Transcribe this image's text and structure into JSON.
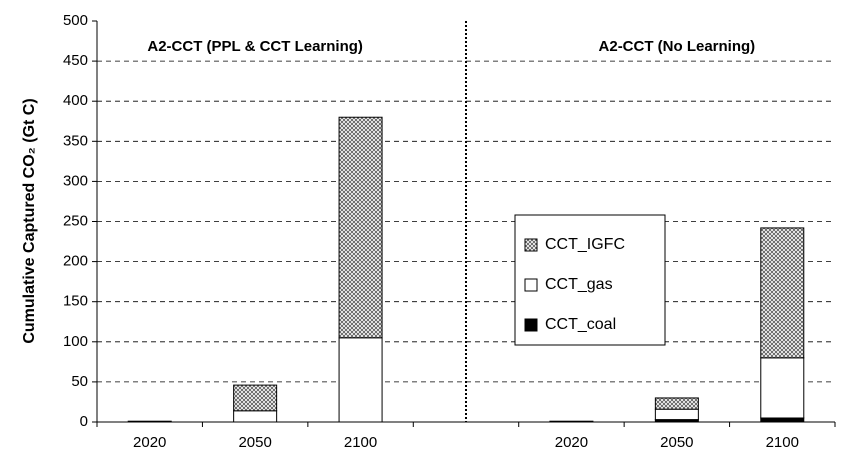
{
  "chart_data": {
    "type": "stacked_bar",
    "y_label": "Cumulative Captured CO₂ (Gt C)",
    "annotations": [
      "A2-CCT (PPL & CCT Learning)",
      "A2-CCT (No Learning)"
    ],
    "categories": [
      "2020",
      "2050",
      "2100",
      null,
      "2020",
      "2050",
      "2100"
    ],
    "series": [
      {
        "name": "CCT_coal",
        "color": "#000000",
        "pattern": "none",
        "values": [
          0,
          0,
          0,
          null,
          0,
          3,
          5
        ]
      },
      {
        "name": "CCT_gas",
        "color": "#ffffff",
        "pattern": "none",
        "values": [
          1,
          14,
          105,
          null,
          1,
          13,
          75
        ]
      },
      {
        "name": "CCT_IGFC",
        "color": "#ffffff",
        "pattern": "crosshatch",
        "values": [
          0,
          32,
          275,
          null,
          0,
          14,
          162
        ]
      }
    ],
    "ylim": [
      0,
      500
    ],
    "yticks": [
      0,
      50,
      100,
      150,
      200,
      250,
      300,
      350,
      400,
      450,
      500
    ],
    "grid": true,
    "legend": "center-right"
  }
}
